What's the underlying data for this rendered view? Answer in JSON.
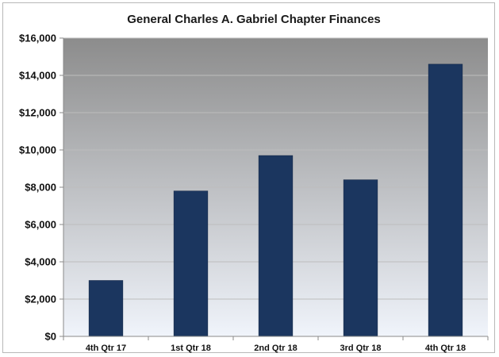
{
  "chart_data": {
    "type": "bar",
    "title": "General Charles A. Gabriel Chapter Finances",
    "xlabel": "",
    "ylabel": "",
    "categories": [
      "4th Qtr 17",
      "1st Qtr 18",
      "2nd Qtr 18",
      "3rd Qtr 18",
      "4th Qtr 18"
    ],
    "values": [
      3000,
      7800,
      9700,
      8400,
      14600
    ],
    "ylim": [
      0,
      16000
    ],
    "yticks": [
      0,
      2000,
      4000,
      6000,
      8000,
      10000,
      12000,
      14000,
      16000
    ],
    "ytick_labels": [
      "$0",
      "$2,000",
      "$4,000",
      "$6,000",
      "$8,000",
      "$10,000",
      "$12,000",
      "$14,000",
      "$16,000"
    ],
    "grid": true,
    "legend": "none",
    "colors": {
      "bar": "#1b365f",
      "plot_bg_top": "#8c8c8c",
      "plot_bg_bottom": "#f0f4fb",
      "gridline": "#bdbdbd"
    }
  }
}
